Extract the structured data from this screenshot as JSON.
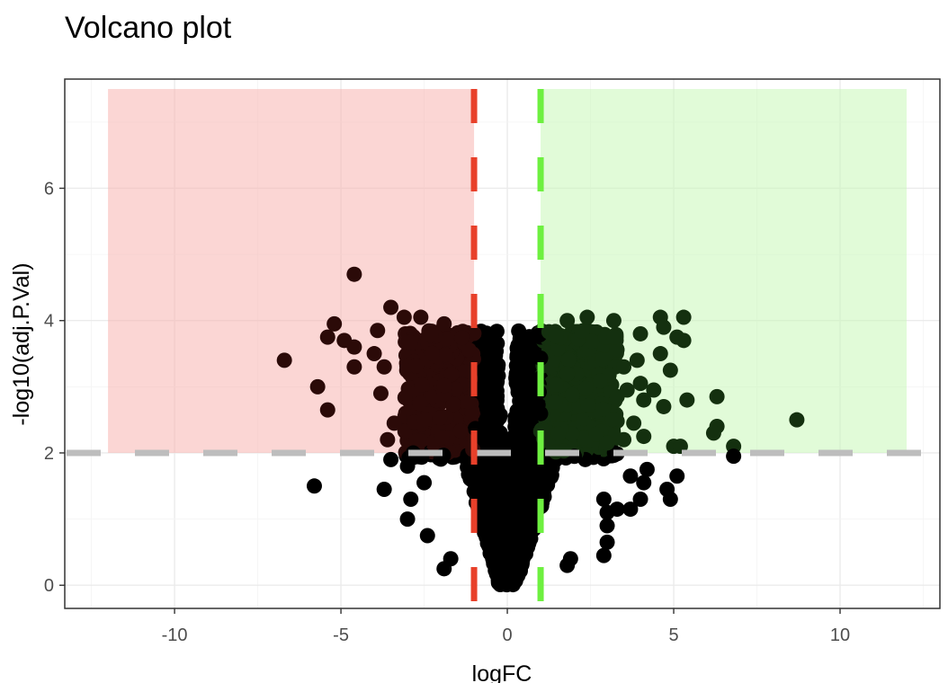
{
  "chart_data": {
    "type": "scatter",
    "title": "Volcano plot",
    "xlabel": "logFC",
    "ylabel": "-log10(adj.P.Val)",
    "xlim": [
      -13.3,
      13
    ],
    "ylim": [
      -0.35,
      7.65
    ],
    "x_ticks": [
      -10,
      -5,
      0,
      5,
      10
    ],
    "x_tick_labels": [
      "-10",
      "-5",
      "0",
      "5",
      "10"
    ],
    "y_ticks": [
      0,
      2,
      4,
      6
    ],
    "y_tick_labels": [
      "0",
      "2",
      "4",
      "6"
    ],
    "grid": true,
    "legend": "none",
    "thresholds": {
      "logFC_down": -1,
      "logFC_up": 1,
      "neg_log10_adjp": 2
    },
    "regions": [
      {
        "name": "down",
        "x": [
          -12,
          -1
        ],
        "y": [
          2,
          7.5
        ],
        "color": "#f8b4b0"
      },
      {
        "name": "up",
        "x": [
          1,
          12
        ],
        "y": [
          2,
          7.5
        ],
        "color": "#c8f8b8"
      }
    ],
    "colors": {
      "points": "#000000",
      "down_line": "#e8402a",
      "up_line": "#6ef040",
      "p_line": "#bdbdbd",
      "down_region": "#f8b4b0",
      "up_region": "#c8f8b8"
    },
    "outlier_points": [
      [
        -4.6,
        4.7
      ],
      [
        -3.5,
        4.2
      ],
      [
        -5.2,
        3.95
      ],
      [
        -5.4,
        3.75
      ],
      [
        -4.9,
        3.7
      ],
      [
        -6.7,
        3.4
      ],
      [
        -4.6,
        3.3
      ],
      [
        -4.6,
        3.6
      ],
      [
        -3.9,
        3.85
      ],
      [
        -3.1,
        4.05
      ],
      [
        -2.6,
        4.05
      ],
      [
        -1.9,
        3.95
      ],
      [
        -4.0,
        3.5
      ],
      [
        -3.7,
        3.3
      ],
      [
        -3.8,
        2.9
      ],
      [
        -5.7,
        3.0
      ],
      [
        -5.4,
        2.65
      ],
      [
        -3.4,
        2.45
      ],
      [
        -3.6,
        2.2
      ],
      [
        -3.5,
        1.9
      ],
      [
        -5.8,
        1.5
      ],
      [
        -3.7,
        1.45
      ],
      [
        -3.0,
        1.8
      ],
      [
        -2.5,
        1.55
      ],
      [
        -2.9,
        1.3
      ],
      [
        -3.0,
        1.0
      ],
      [
        -2.4,
        0.75
      ],
      [
        -1.7,
        0.4
      ],
      [
        -1.9,
        0.25
      ],
      [
        4.6,
        4.05
      ],
      [
        5.3,
        4.05
      ],
      [
        4.7,
        3.9
      ],
      [
        5.1,
        3.75
      ],
      [
        5.3,
        3.7
      ],
      [
        3.2,
        4.0
      ],
      [
        2.4,
        4.05
      ],
      [
        1.8,
        4.0
      ],
      [
        4.0,
        3.8
      ],
      [
        3.2,
        3.75
      ],
      [
        4.6,
        3.5
      ],
      [
        3.9,
        3.4
      ],
      [
        3.5,
        3.3
      ],
      [
        4.9,
        3.25
      ],
      [
        4.0,
        3.05
      ],
      [
        3.6,
        2.95
      ],
      [
        4.1,
        2.8
      ],
      [
        4.4,
        2.95
      ],
      [
        3.3,
        2.85
      ],
      [
        5.4,
        2.8
      ],
      [
        4.7,
        2.7
      ],
      [
        6.3,
        2.85
      ],
      [
        8.7,
        2.5
      ],
      [
        6.3,
        2.4
      ],
      [
        3.8,
        2.45
      ],
      [
        6.2,
        2.3
      ],
      [
        4.1,
        2.25
      ],
      [
        3.5,
        2.2
      ],
      [
        3.0,
        2.15
      ],
      [
        5.0,
        2.1
      ],
      [
        5.2,
        2.1
      ],
      [
        6.8,
        2.1
      ],
      [
        6.8,
        1.95
      ],
      [
        4.2,
        1.75
      ],
      [
        3.7,
        1.65
      ],
      [
        5.1,
        1.65
      ],
      [
        4.1,
        1.55
      ],
      [
        4.8,
        1.45
      ],
      [
        4.9,
        1.3
      ],
      [
        4.0,
        1.3
      ],
      [
        3.3,
        1.15
      ],
      [
        3.0,
        1.1
      ],
      [
        2.9,
        1.3
      ],
      [
        3.7,
        1.15
      ],
      [
        3.0,
        0.9
      ],
      [
        3.0,
        0.65
      ],
      [
        2.9,
        0.45
      ],
      [
        1.9,
        0.4
      ],
      [
        1.8,
        0.3
      ]
    ]
  }
}
